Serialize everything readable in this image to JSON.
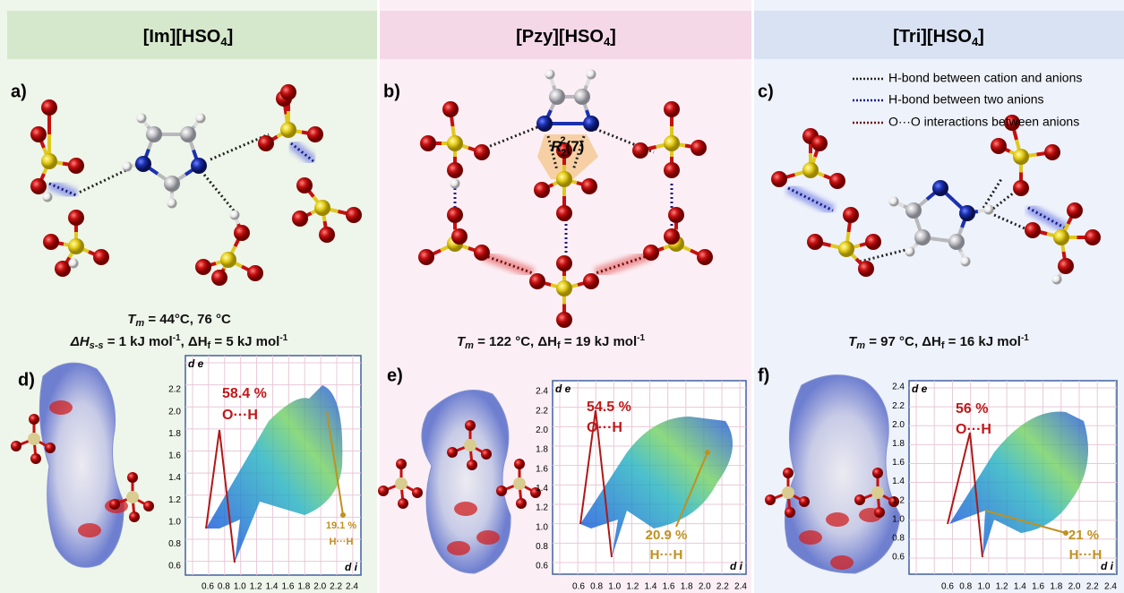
{
  "panels": [
    {
      "title": [
        "[Im][HSO",
        "4",
        "]"
      ],
      "label": "a)",
      "thermal": [
        [
          "T",
          "m",
          " = 44°C, 76 °C"
        ],
        [
          "ΔH",
          "s-s",
          " = 1 kJ mol",
          "-1",
          ", ΔH",
          "f",
          " = 5 kJ mol",
          "-1"
        ]
      ],
      "plot": {
        "label": "d)",
        "y_axis": "d e",
        "x_axis": "d i",
        "yticks": [
          "0.6",
          "0.8",
          "1.0",
          "1.2",
          "1.4",
          "1.6",
          "1.8",
          "2.0",
          "2.2"
        ],
        "xticks": [
          "0.6",
          "0.8",
          "1.0",
          "1.2",
          "1.4",
          "1.6",
          "1.8",
          "2.0",
          "2.2",
          "2.4"
        ],
        "annotations": [
          {
            "percent": "58.4 %",
            "interaction": "O···H"
          },
          {
            "percent": "19.1 %",
            "interaction": "H···H"
          }
        ]
      }
    },
    {
      "title": [
        "[Pzy][HSO",
        "4",
        "]"
      ],
      "label": "b)",
      "thermal": [
        [
          "T",
          "m",
          " = 122 °C, ΔH",
          "f",
          " = 19 kJ mol",
          "-1"
        ]
      ],
      "plot": {
        "label": "e)",
        "y_axis": "d e",
        "x_axis": "d i",
        "yticks": [
          "0.6",
          "0.8",
          "1.0",
          "1.2",
          "1.4",
          "1.6",
          "1.8",
          "2.0",
          "2.2",
          "2.4"
        ],
        "xticks": [
          "0.6",
          "0.8",
          "1.0",
          "1.2",
          "1.4",
          "1.6",
          "1.8",
          "2.0",
          "2.2",
          "2.4"
        ],
        "annotations": [
          {
            "percent": "54.5 %",
            "interaction": "O···H"
          },
          {
            "percent": "20.9 %",
            "interaction": "H···H"
          }
        ]
      }
    },
    {
      "title": [
        "[Tri][HSO",
        "4",
        "]"
      ],
      "label": "c)",
      "thermal": [
        [
          "T",
          "m",
          " = 97 °C, ΔH",
          "f",
          " = 16 kJ mol",
          "-1"
        ]
      ],
      "plot": {
        "label": "f)",
        "y_axis": "d e",
        "x_axis": "d i",
        "yticks": [
          "0.6",
          "0.8",
          "1.0",
          "1.2",
          "1.4",
          "1.6",
          "1.8",
          "2.0",
          "2.2",
          "2.4"
        ],
        "xticks": [
          "0.6",
          "0.8",
          "1.0",
          "1.2",
          "1.4",
          "1.6",
          "1.8",
          "2.0",
          "2.2",
          "2.4"
        ],
        "annotations": [
          {
            "percent": "56 %",
            "interaction": "O···H"
          },
          {
            "percent": "21 %",
            "interaction": "H···H"
          }
        ]
      }
    }
  ],
  "ring_label": [
    "R",
    "2",
    "2",
    "(7)"
  ],
  "legend": [
    "H-bond between cation and anions",
    "H-bond between two anions",
    "O···O interactions between anions"
  ]
}
